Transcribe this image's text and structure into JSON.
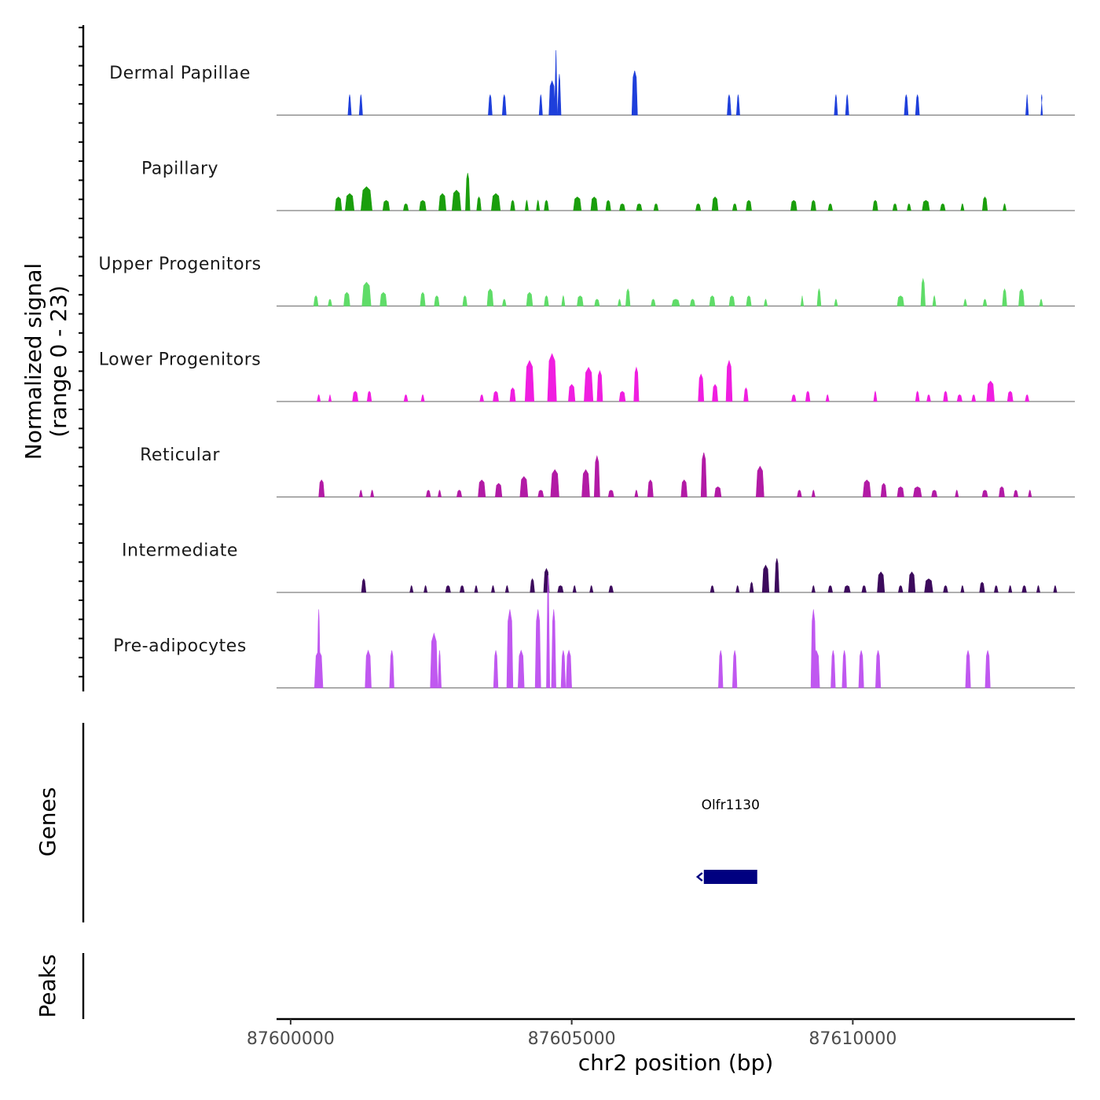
{
  "chart_data": {
    "type": "area",
    "title": "",
    "xlabel": "chr2 position (bp)",
    "ylabel_line1": "Normalized signal",
    "ylabel_line2": "(range 0 - 23)",
    "ylim": [
      0,
      23
    ],
    "xlim": [
      87599750,
      87613950
    ],
    "x_ticks": [
      87600000,
      87605000,
      87610000
    ],
    "x_tick_labels": [
      "87600000",
      "87605000",
      "87610000"
    ],
    "tracks": [
      {
        "name": "Dermal Papillae",
        "color": "#1e3fdb",
        "peaks": [
          [
            87601050,
            60,
            6
          ],
          [
            87601250,
            60,
            6
          ],
          [
            87603550,
            70,
            6
          ],
          [
            87603800,
            70,
            6
          ],
          [
            87604450,
            60,
            6
          ],
          [
            87604650,
            110,
            10
          ],
          [
            87604720,
            50,
            19
          ],
          [
            87604780,
            60,
            12
          ],
          [
            87606120,
            100,
            13
          ],
          [
            87607800,
            70,
            6
          ],
          [
            87607960,
            60,
            6
          ],
          [
            87609700,
            60,
            6
          ],
          [
            87609900,
            60,
            6
          ],
          [
            87610950,
            70,
            6
          ],
          [
            87611150,
            70,
            6
          ],
          [
            87613100,
            50,
            6
          ],
          [
            87613360,
            30,
            6
          ]
        ]
      },
      {
        "name": "Papillary",
        "color": "#1a9e0c",
        "peaks": [
          [
            87600850,
            120,
            4
          ],
          [
            87601050,
            160,
            5
          ],
          [
            87601350,
            200,
            7
          ],
          [
            87601700,
            120,
            3
          ],
          [
            87602050,
            90,
            2
          ],
          [
            87602350,
            120,
            3
          ],
          [
            87602700,
            130,
            5
          ],
          [
            87602950,
            160,
            6
          ],
          [
            87603150,
            80,
            11
          ],
          [
            87603350,
            80,
            4
          ],
          [
            87603650,
            160,
            5
          ],
          [
            87603950,
            80,
            3
          ],
          [
            87604200,
            60,
            3
          ],
          [
            87604400,
            60,
            3
          ],
          [
            87604550,
            80,
            3
          ],
          [
            87605100,
            140,
            4
          ],
          [
            87605400,
            120,
            4
          ],
          [
            87605650,
            90,
            3
          ],
          [
            87605900,
            100,
            2
          ],
          [
            87606200,
            100,
            2
          ],
          [
            87606500,
            80,
            2
          ],
          [
            87607250,
            90,
            2
          ],
          [
            87607550,
            110,
            4
          ],
          [
            87607900,
            80,
            2
          ],
          [
            87608150,
            100,
            3
          ],
          [
            87608950,
            110,
            3
          ],
          [
            87609300,
            90,
            3
          ],
          [
            87609600,
            80,
            2
          ],
          [
            87610400,
            90,
            3
          ],
          [
            87610750,
            80,
            2
          ],
          [
            87611000,
            70,
            2
          ],
          [
            87611300,
            130,
            3
          ],
          [
            87611600,
            90,
            2
          ],
          [
            87611950,
            60,
            2
          ],
          [
            87612350,
            90,
            4
          ],
          [
            87612700,
            60,
            2
          ]
        ]
      },
      {
        "name": "Upper Progenitors",
        "color": "#5fdc68",
        "peaks": [
          [
            87600450,
            80,
            3
          ],
          [
            87600700,
            70,
            2
          ],
          [
            87601000,
            110,
            4
          ],
          [
            87601350,
            160,
            7
          ],
          [
            87601650,
            120,
            4
          ],
          [
            87602350,
            90,
            4
          ],
          [
            87602600,
            90,
            3
          ],
          [
            87603100,
            80,
            3
          ],
          [
            87603550,
            110,
            5
          ],
          [
            87603800,
            70,
            2
          ],
          [
            87604250,
            110,
            4
          ],
          [
            87604550,
            80,
            3
          ],
          [
            87604850,
            60,
            3
          ],
          [
            87605150,
            110,
            3
          ],
          [
            87605450,
            90,
            2
          ],
          [
            87605850,
            60,
            2
          ],
          [
            87606000,
            80,
            5
          ],
          [
            87606450,
            80,
            2
          ],
          [
            87606850,
            140,
            2
          ],
          [
            87607150,
            90,
            2
          ],
          [
            87607500,
            100,
            3
          ],
          [
            87607850,
            100,
            3
          ],
          [
            87608150,
            90,
            3
          ],
          [
            87608450,
            60,
            2
          ],
          [
            87609100,
            50,
            3
          ],
          [
            87609400,
            70,
            5
          ],
          [
            87609700,
            60,
            2
          ],
          [
            87610850,
            120,
            3
          ],
          [
            87611250,
            80,
            8
          ],
          [
            87611450,
            60,
            3
          ],
          [
            87612000,
            60,
            2
          ],
          [
            87612350,
            70,
            2
          ],
          [
            87612700,
            80,
            5
          ],
          [
            87613000,
            100,
            5
          ],
          [
            87613350,
            60,
            2
          ]
        ]
      },
      {
        "name": "Lower Progenitors",
        "color": "#f01ee0",
        "peaks": [
          [
            87600500,
            60,
            2
          ],
          [
            87600700,
            50,
            2
          ],
          [
            87601150,
            100,
            3
          ],
          [
            87601400,
            80,
            3
          ],
          [
            87602050,
            70,
            2
          ],
          [
            87602350,
            60,
            2
          ],
          [
            87603400,
            70,
            2
          ],
          [
            87603650,
            100,
            3
          ],
          [
            87603950,
            100,
            4
          ],
          [
            87604250,
            160,
            12
          ],
          [
            87604650,
            160,
            14
          ],
          [
            87605000,
            120,
            5
          ],
          [
            87605300,
            160,
            10
          ],
          [
            87605500,
            100,
            9
          ],
          [
            87605900,
            110,
            3
          ],
          [
            87606150,
            90,
            10
          ],
          [
            87607300,
            100,
            8
          ],
          [
            87607550,
            100,
            5
          ],
          [
            87607800,
            110,
            12
          ],
          [
            87608100,
            80,
            4
          ],
          [
            87608950,
            80,
            2
          ],
          [
            87609200,
            80,
            3
          ],
          [
            87609550,
            60,
            2
          ],
          [
            87610400,
            60,
            3
          ],
          [
            87611150,
            70,
            3
          ],
          [
            87611350,
            70,
            2
          ],
          [
            87611650,
            80,
            3
          ],
          [
            87611900,
            90,
            2
          ],
          [
            87612150,
            70,
            2
          ],
          [
            87612450,
            140,
            6
          ],
          [
            87612800,
            100,
            3
          ],
          [
            87613100,
            70,
            2
          ]
        ]
      },
      {
        "name": "Reticular",
        "color": "#b21aa5",
        "peaks": [
          [
            87600550,
            100,
            5
          ],
          [
            87601250,
            60,
            2
          ],
          [
            87601450,
            60,
            2
          ],
          [
            87602450,
            80,
            2
          ],
          [
            87602650,
            60,
            2
          ],
          [
            87603000,
            90,
            2
          ],
          [
            87603400,
            130,
            5
          ],
          [
            87603700,
            120,
            4
          ],
          [
            87604150,
            140,
            6
          ],
          [
            87604450,
            100,
            2
          ],
          [
            87604700,
            150,
            8
          ],
          [
            87605250,
            140,
            8
          ],
          [
            87605450,
            100,
            12
          ],
          [
            87605700,
            100,
            2
          ],
          [
            87606150,
            60,
            2
          ],
          [
            87606400,
            100,
            5
          ],
          [
            87607000,
            110,
            5
          ],
          [
            87607350,
            100,
            13
          ],
          [
            87607600,
            120,
            3
          ],
          [
            87608350,
            140,
            9
          ],
          [
            87609050,
            80,
            2
          ],
          [
            87609300,
            60,
            2
          ],
          [
            87610250,
            140,
            5
          ],
          [
            87610550,
            100,
            4
          ],
          [
            87610850,
            120,
            3
          ],
          [
            87611150,
            150,
            3
          ],
          [
            87611450,
            100,
            2
          ],
          [
            87611850,
            60,
            2
          ],
          [
            87612350,
            100,
            2
          ],
          [
            87612650,
            100,
            3
          ],
          [
            87612900,
            80,
            2
          ],
          [
            87613150,
            60,
            2
          ]
        ]
      },
      {
        "name": "Intermediate",
        "color": "#3c0a5c",
        "peaks": [
          [
            87601300,
            80,
            4
          ],
          [
            87602150,
            60,
            2
          ],
          [
            87602400,
            60,
            2
          ],
          [
            87602800,
            90,
            2
          ],
          [
            87603050,
            80,
            2
          ],
          [
            87603300,
            60,
            2
          ],
          [
            87603600,
            60,
            2
          ],
          [
            87603850,
            60,
            2
          ],
          [
            87604300,
            80,
            4
          ],
          [
            87604550,
            100,
            7
          ],
          [
            87604800,
            100,
            2
          ],
          [
            87605050,
            60,
            2
          ],
          [
            87605350,
            60,
            2
          ],
          [
            87605700,
            80,
            2
          ],
          [
            87607500,
            70,
            2
          ],
          [
            87607950,
            60,
            2
          ],
          [
            87608200,
            70,
            3
          ],
          [
            87608450,
            120,
            8
          ],
          [
            87608650,
            80,
            10
          ],
          [
            87609300,
            60,
            2
          ],
          [
            87609600,
            80,
            2
          ],
          [
            87609900,
            110,
            2
          ],
          [
            87610200,
            80,
            2
          ],
          [
            87610500,
            130,
            6
          ],
          [
            87610850,
            80,
            2
          ],
          [
            87611050,
            120,
            6
          ],
          [
            87611350,
            150,
            4
          ],
          [
            87611650,
            80,
            2
          ],
          [
            87611950,
            60,
            2
          ],
          [
            87612300,
            90,
            3
          ],
          [
            87612550,
            70,
            2
          ],
          [
            87612800,
            60,
            2
          ],
          [
            87613050,
            80,
            2
          ],
          [
            87613300,
            60,
            2
          ],
          [
            87613600,
            60,
            2
          ]
        ]
      },
      {
        "name": "Pre-adipocytes",
        "color": "#c058f0",
        "peaks": [
          [
            87600500,
            60,
            23
          ],
          [
            87600500,
            150,
            11
          ],
          [
            87601380,
            110,
            11
          ],
          [
            87601800,
            80,
            11
          ],
          [
            87602550,
            130,
            16
          ],
          [
            87602650,
            60,
            11
          ],
          [
            87603650,
            80,
            11
          ],
          [
            87603900,
            110,
            23
          ],
          [
            87604100,
            110,
            11
          ],
          [
            87604400,
            100,
            23
          ],
          [
            87604580,
            60,
            33
          ],
          [
            87604680,
            80,
            23
          ],
          [
            87604850,
            80,
            11
          ],
          [
            87604950,
            100,
            11
          ],
          [
            87607650,
            80,
            11
          ],
          [
            87607900,
            80,
            11
          ],
          [
            87609300,
            90,
            23
          ],
          [
            87609350,
            120,
            11
          ],
          [
            87609650,
            80,
            11
          ],
          [
            87609850,
            80,
            11
          ],
          [
            87610150,
            90,
            11
          ],
          [
            87610450,
            90,
            11
          ],
          [
            87612050,
            90,
            11
          ],
          [
            87612400,
            90,
            11
          ]
        ]
      }
    ],
    "genes": [
      {
        "name": "Olfr1130",
        "start": 87607350,
        "end": 87608300,
        "strand": "-",
        "color": "#000080"
      }
    ],
    "panels": [
      "Genes",
      "Peaks"
    ]
  }
}
